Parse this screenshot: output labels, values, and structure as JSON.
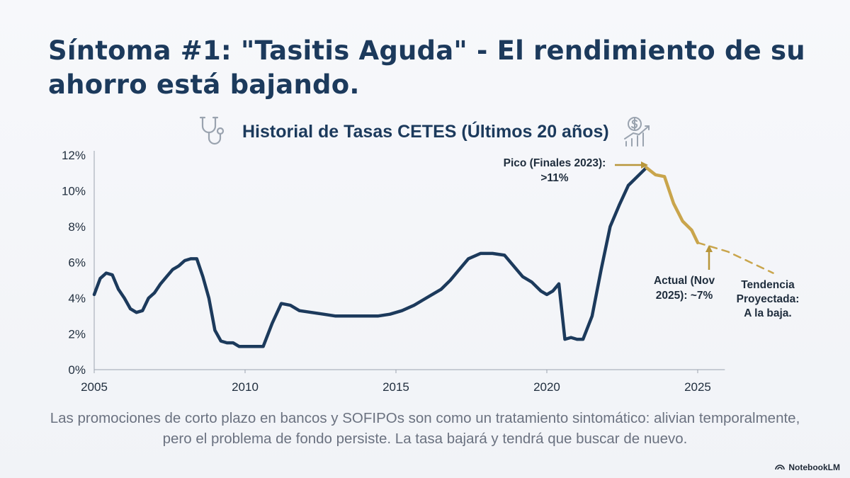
{
  "slide": {
    "title": "Síntoma #1: \"Tasitis Aguda\" - El rendimiento de su ahorro está bajando.",
    "footer_text": "Las promociones de corto plazo en bancos y SOFIPOs son como un tratamiento sintomático: alivian temporalmente, pero el problema de fondo persiste. La tasa bajará y tendrá que buscar de nuevo.",
    "brand": "NotebookLM",
    "icons": [
      "stethoscope-icon",
      "money-growth-icon",
      "notebooklm-logo-icon"
    ]
  },
  "chart_data": {
    "type": "line",
    "title": "Historial de Tasas CETES (Últimos 20 años)",
    "xlabel": "",
    "ylabel": "",
    "xlim": [
      2005,
      2027.7
    ],
    "ylim": [
      0,
      12
    ],
    "x_ticks": [
      2005,
      2010,
      2015,
      2020,
      2025
    ],
    "y_ticks": [
      0,
      2,
      4,
      6,
      8,
      10,
      12
    ],
    "y_tick_labels": [
      "0%",
      "2%",
      "4%",
      "6%",
      "8%",
      "10%",
      "12%"
    ],
    "grid": false,
    "colors": {
      "history": "#1c3a5c",
      "recent": "#c9a54c",
      "annotation": "#b8963a"
    },
    "series": [
      {
        "style": "solid",
        "x": [
          2005.0,
          2005.2,
          2005.4,
          2005.6,
          2005.8,
          2006.0,
          2006.2,
          2006.4,
          2006.6,
          2006.8,
          2007.0,
          2007.2,
          2007.4,
          2007.6,
          2007.8,
          2008.0,
          2008.2,
          2008.4,
          2008.6,
          2008.8,
          2009.0,
          2009.2,
          2009.4,
          2009.6,
          2009.8,
          2010.0,
          2010.3,
          2010.6,
          2010.9,
          2011.2,
          2011.5,
          2011.8,
          2012.2,
          2012.6,
          2013.0,
          2013.5,
          2014.0,
          2014.4,
          2014.8,
          2015.2,
          2015.6,
          2015.9,
          2016.2,
          2016.5,
          2016.8,
          2017.1,
          2017.4,
          2017.8,
          2018.2,
          2018.6,
          2018.9,
          2019.2,
          2019.5,
          2019.8,
          2020.0,
          2020.2,
          2020.4,
          2020.6,
          2020.8,
          2021.0,
          2021.2,
          2021.5,
          2021.8,
          2022.1,
          2022.4,
          2022.7,
          2023.0,
          2023.3
        ],
        "values": [
          4.2,
          5.1,
          5.4,
          5.3,
          4.5,
          4.0,
          3.4,
          3.2,
          3.3,
          4.0,
          4.3,
          4.8,
          5.2,
          5.6,
          5.8,
          6.1,
          6.2,
          6.2,
          5.2,
          4.0,
          2.2,
          1.6,
          1.5,
          1.5,
          1.3,
          1.3,
          1.3,
          1.3,
          2.6,
          3.7,
          3.6,
          3.3,
          3.2,
          3.1,
          3.0,
          3.0,
          3.0,
          3.0,
          3.1,
          3.3,
          3.6,
          3.9,
          4.2,
          4.5,
          5.0,
          5.6,
          6.2,
          6.5,
          6.5,
          6.4,
          5.8,
          5.2,
          4.9,
          4.4,
          4.2,
          4.4,
          4.8,
          1.7,
          1.8,
          1.7,
          1.7,
          3.0,
          5.6,
          8.0,
          9.2,
          10.3,
          10.8,
          11.3
        ]
      },
      {
        "style": "solid",
        "x": [
          2023.3,
          2023.6,
          2023.9,
          2024.2,
          2024.5,
          2024.8,
          2025.0
        ],
        "values": [
          11.3,
          10.9,
          10.8,
          9.3,
          8.3,
          7.8,
          7.1
        ]
      },
      {
        "style": "dashed",
        "x": [
          2025.0,
          2026.0,
          2027.5
        ],
        "values": [
          7.1,
          6.6,
          5.4
        ]
      }
    ],
    "annotations": [
      {
        "id": "peak",
        "lines": [
          "Pico (Finales 2023):",
          ">11%"
        ]
      },
      {
        "id": "current",
        "lines": [
          "Actual (Nov",
          "2025): ~7%"
        ]
      },
      {
        "id": "trend",
        "lines": [
          "Tendencia",
          "Proyectada:",
          "A la baja."
        ]
      }
    ]
  }
}
